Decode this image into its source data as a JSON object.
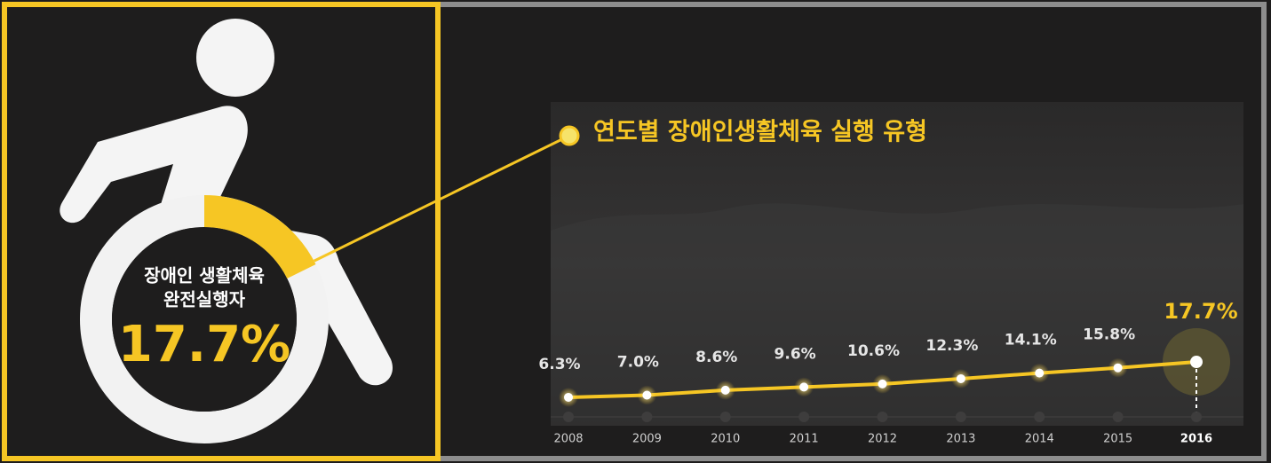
{
  "chart_data": [
    {
      "type": "pie",
      "title": [
        "장애인 생활체육",
        "완전실행자"
      ],
      "values": [
        17.7
      ],
      "value_labels": [
        "17.7%"
      ],
      "color": "#f6c624"
    },
    {
      "type": "line",
      "title": "연도별 장애인생활체육 실행 유형",
      "categories": [
        "2008",
        "2009",
        "2010",
        "2011",
        "2012",
        "2013",
        "2014",
        "2015",
        "2016"
      ],
      "values": [
        6.3,
        7.0,
        8.6,
        9.6,
        10.6,
        12.3,
        14.1,
        15.8,
        17.7
      ],
      "value_labels": [
        "6.3%",
        "7.0%",
        "8.6%",
        "9.6%",
        "10.6%",
        "12.3%",
        "14.1%",
        "15.8%",
        "17.7%"
      ],
      "ylim": [
        0,
        100
      ],
      "color": "#f6c624"
    }
  ]
}
